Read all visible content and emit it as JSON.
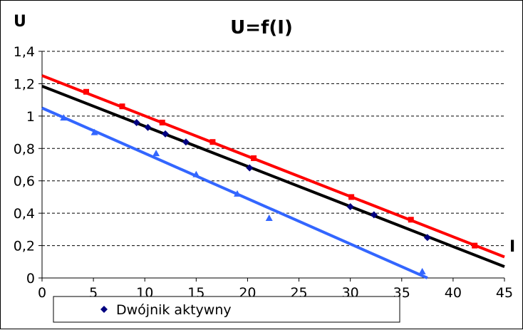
{
  "chart_data": {
    "type": "scatter",
    "title": "U=f(I)",
    "xlabel": "I",
    "ylabel": "U",
    "xlim": [
      0,
      45
    ],
    "ylim": [
      0,
      1.4
    ],
    "x_ticks": [
      "0",
      "5",
      "10",
      "15",
      "20",
      "25",
      "30",
      "35",
      "40",
      "45"
    ],
    "y_ticks": [
      "0",
      "0,2",
      "0,4",
      "0,6",
      "0,8",
      "1",
      "1,2",
      "1,4"
    ],
    "grid": "horizontal-dashed",
    "legend": {
      "position": "bottom",
      "entries": [
        "Dwójnik aktywny"
      ]
    },
    "series": [
      {
        "name": "Dwójnik aktywny",
        "color": "#000080",
        "marker": "diamond",
        "points": [
          [
            9.2,
            0.96
          ],
          [
            10.3,
            0.93
          ],
          [
            12,
            0.89
          ],
          [
            14,
            0.84
          ],
          [
            20.2,
            0.68
          ],
          [
            30,
            0.44
          ],
          [
            32.3,
            0.39
          ],
          [
            37.5,
            0.25
          ]
        ],
        "trendline": {
          "color": "#000000",
          "x": [
            0,
            45
          ],
          "y": [
            1.185,
            0.07
          ]
        }
      },
      {
        "color": "#ff0000",
        "marker": "square",
        "points": [
          [
            4.3,
            1.15
          ],
          [
            7.8,
            1.06
          ],
          [
            11.7,
            0.96
          ],
          [
            16.6,
            0.84
          ],
          [
            20.6,
            0.74
          ],
          [
            30.1,
            0.5
          ],
          [
            35.9,
            0.36
          ],
          [
            42.1,
            0.2
          ]
        ],
        "trendline": {
          "color": "#ff0000",
          "x": [
            0,
            45
          ],
          "y": [
            1.25,
            0.13
          ]
        }
      },
      {
        "color": "#3366ff",
        "marker": "triangle",
        "points": [
          [
            2.1,
            0.99
          ],
          [
            5.1,
            0.9
          ],
          [
            11.1,
            0.77
          ],
          [
            15,
            0.64
          ],
          [
            19,
            0.52
          ],
          [
            22.1,
            0.37
          ],
          [
            37,
            0.04
          ]
        ],
        "trendline": {
          "color": "#3366ff",
          "x": [
            0,
            37.5
          ],
          "y": [
            1.05,
            0.0
          ]
        }
      }
    ]
  }
}
